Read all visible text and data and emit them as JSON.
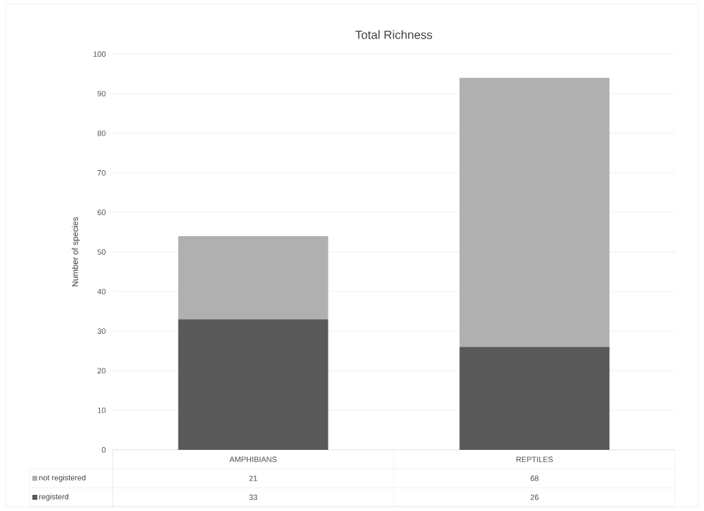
{
  "chart_data": {
    "type": "bar",
    "title": "Total Richness",
    "ylabel": "Number of species",
    "categories": [
      "AMPHIBIANS",
      "REPTILES"
    ],
    "series": [
      {
        "name": "registerd",
        "color": "#595959",
        "values": [
          33,
          26
        ]
      },
      {
        "name": "not registered",
        "color": "#b0b0b0",
        "values": [
          21,
          68
        ]
      }
    ],
    "stacked": true,
    "ylim": [
      0,
      100
    ],
    "yticks": [
      0,
      10,
      20,
      30,
      40,
      50,
      60,
      70,
      80,
      90,
      100
    ],
    "grid": "y",
    "legend": "bottom",
    "data_labels": true
  }
}
